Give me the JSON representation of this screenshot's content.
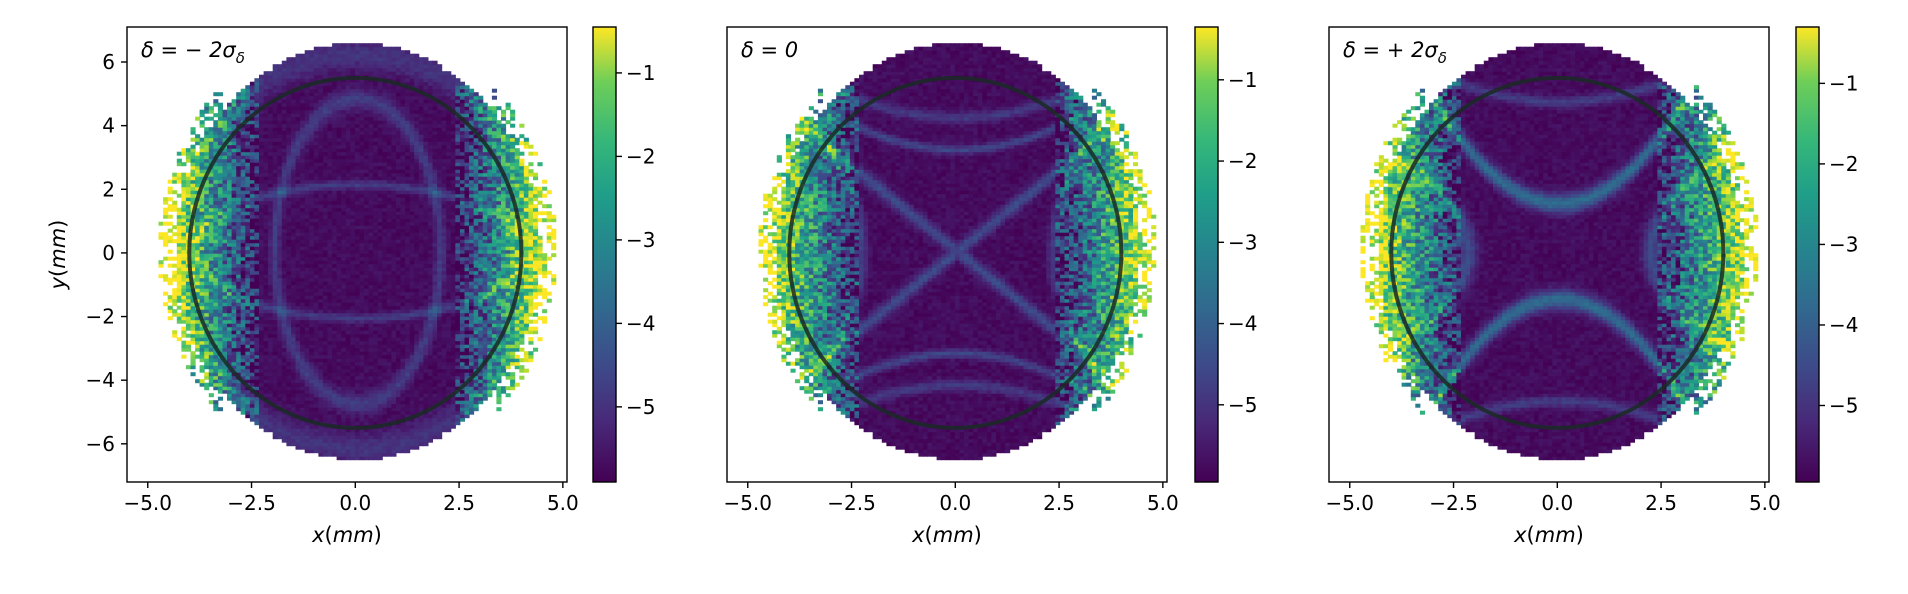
{
  "chart_data": [
    {
      "type": "heatmap",
      "label": "δ = −2σδ",
      "label_latex": [
        "δ = − 2σ",
        "δ"
      ],
      "xlabel": "x(mm)",
      "ylabel": "y(mm)",
      "xlim": [
        -5.5,
        5.1
      ],
      "ylim": [
        -7.2,
        7.1
      ],
      "xticks": [
        -5.0,
        -2.5,
        0.0,
        2.5,
        5.0
      ],
      "yticks": [
        -6,
        -4,
        -2,
        0,
        2,
        4,
        6
      ],
      "colorbar": {
        "ticks": [
          -1,
          -2,
          -3,
          -4,
          -5
        ],
        "range": [
          -5.9,
          -0.45
        ],
        "colormap": "viridis"
      },
      "aperture_circle": {
        "cx": 0,
        "cy": 0,
        "rx": 4.0,
        "ry": 5.5,
        "color": "#1a2a24"
      },
      "pattern": "ellipses"
    },
    {
      "type": "heatmap",
      "label": "δ = 0",
      "label_latex": [
        "δ = 0",
        ""
      ],
      "xlabel": "x(mm)",
      "ylabel": "",
      "xlim": [
        -5.5,
        5.1
      ],
      "ylim": [
        -7.2,
        7.1
      ],
      "xticks": [
        -5.0,
        -2.5,
        0.0,
        2.5,
        5.0
      ],
      "yticks": [],
      "colorbar": {
        "ticks": [
          -1,
          -2,
          -3,
          -4,
          -5
        ],
        "range": [
          -5.95,
          -0.35
        ],
        "colormap": "viridis"
      },
      "aperture_circle": {
        "cx": 0,
        "cy": 0,
        "rx": 4.0,
        "ry": 5.5,
        "color": "#1a2a24"
      },
      "pattern": "cross"
    },
    {
      "type": "heatmap",
      "label": "δ = +2σδ",
      "label_latex": [
        "δ = + 2σ",
        "δ"
      ],
      "xlabel": "x(mm)",
      "ylabel": "",
      "xlim": [
        -5.5,
        5.1
      ],
      "ylim": [
        -7.2,
        7.1
      ],
      "xticks": [
        -5.0,
        -2.5,
        0.0,
        2.5,
        5.0
      ],
      "yticks": [],
      "colorbar": {
        "ticks": [
          -1,
          -2,
          -3,
          -4,
          -5
        ],
        "range": [
          -5.95,
          -0.3
        ],
        "colormap": "viridis"
      },
      "aperture_circle": {
        "cx": 0,
        "cy": 0,
        "rx": 4.0,
        "ry": 5.5,
        "color": "#1a2a24"
      },
      "pattern": "hourglass"
    }
  ]
}
